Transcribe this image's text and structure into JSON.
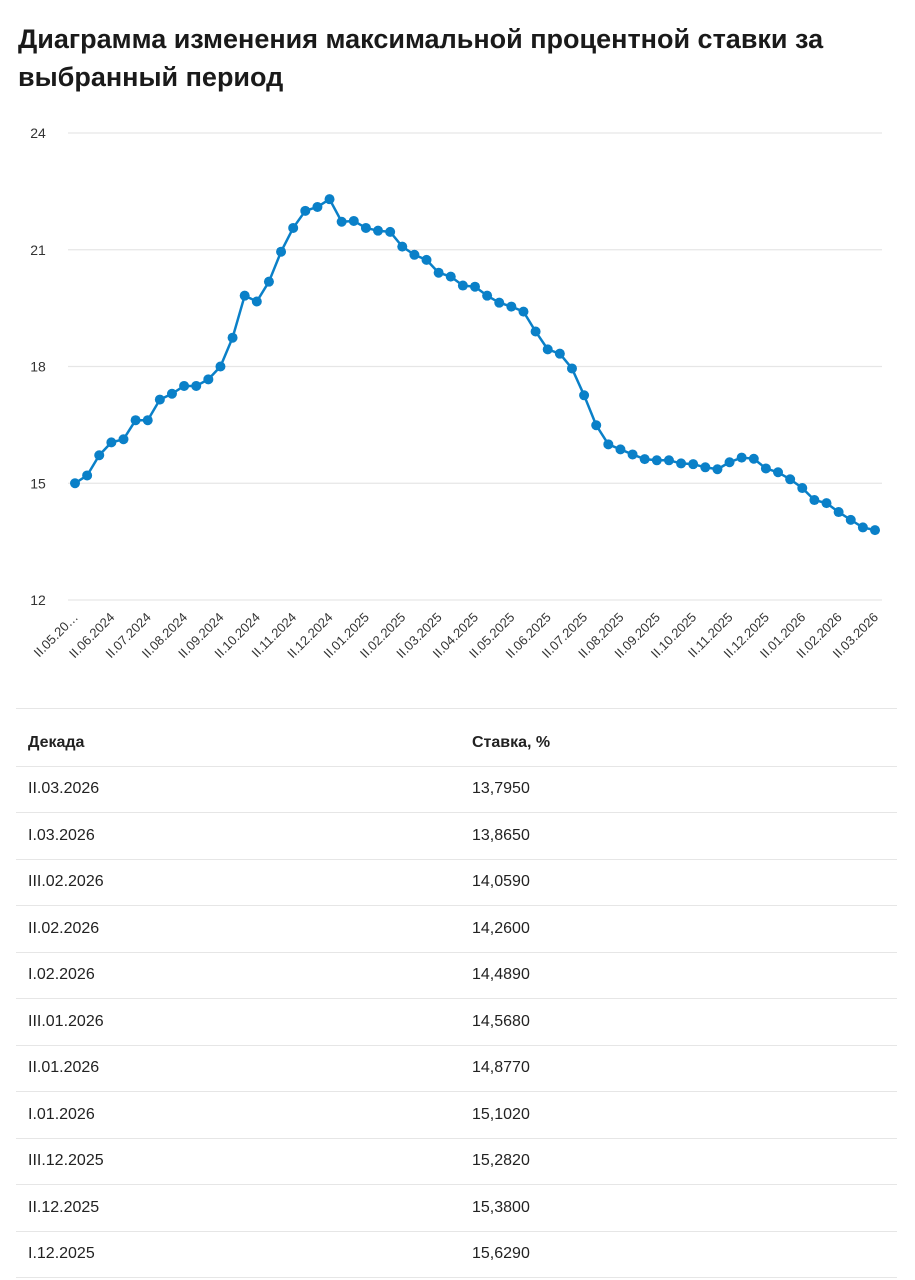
{
  "title": "Диаграмма изменения максимальной процентной ставки за выбранный период",
  "chart_data": {
    "type": "line",
    "title": "Диаграмма изменения максимальной процентной ставки за выбранный период",
    "xlabel": "",
    "ylabel": "",
    "ylim": [
      12,
      24
    ],
    "yticks": [
      "12",
      "15",
      "18",
      "21",
      "24"
    ],
    "grid": true,
    "color": "#0a80c8",
    "x_tick_labels": [
      "II.05.20…",
      "II.06.2024",
      "II.07.2024",
      "II.08.2024",
      "II.09.2024",
      "II.10.2024",
      "II.11.2024",
      "II.12.2024",
      "II.01.2025",
      "II.02.2025",
      "II.03.2025",
      "II.04.2025",
      "II.05.2025",
      "II.06.2025",
      "II.07.2025",
      "II.08.2025",
      "II.09.2025",
      "II.10.2025",
      "II.11.2025",
      "II.12.2025",
      "II.01.2026",
      "II.02.2026",
      "II.03.2026"
    ],
    "tick_every": 3,
    "values": [
      15.0,
      15.2,
      15.72,
      16.05,
      16.13,
      16.62,
      16.62,
      17.15,
      17.3,
      17.5,
      17.5,
      17.67,
      18.0,
      18.74,
      19.82,
      19.67,
      20.18,
      20.95,
      21.56,
      22.0,
      22.1,
      22.3,
      21.72,
      21.74,
      21.56,
      21.49,
      21.46,
      21.08,
      20.87,
      20.74,
      20.41,
      20.31,
      20.08,
      20.05,
      19.82,
      19.64,
      19.54,
      19.41,
      18.9,
      18.44,
      18.33,
      17.95,
      17.26,
      16.49,
      16.0,
      15.87,
      15.74,
      15.62,
      15.59,
      15.59,
      15.51,
      15.49,
      15.41,
      15.36,
      15.54,
      15.66,
      15.629,
      15.38,
      15.282,
      15.102,
      14.877,
      14.568,
      14.489,
      14.26,
      14.059,
      13.865,
      13.795
    ]
  },
  "table": {
    "headers": [
      "Декада",
      "Ставка, %"
    ],
    "rows": [
      [
        "II.03.2026",
        "13,7950"
      ],
      [
        "I.03.2026",
        "13,8650"
      ],
      [
        "III.02.2026",
        "14,0590"
      ],
      [
        "II.02.2026",
        "14,2600"
      ],
      [
        "I.02.2026",
        "14,4890"
      ],
      [
        "III.01.2026",
        "14,5680"
      ],
      [
        "II.01.2026",
        "14,8770"
      ],
      [
        "I.01.2026",
        "15,1020"
      ],
      [
        "III.12.2025",
        "15,2820"
      ],
      [
        "II.12.2025",
        "15,3800"
      ],
      [
        "I.12.2025",
        "15,6290"
      ]
    ]
  }
}
